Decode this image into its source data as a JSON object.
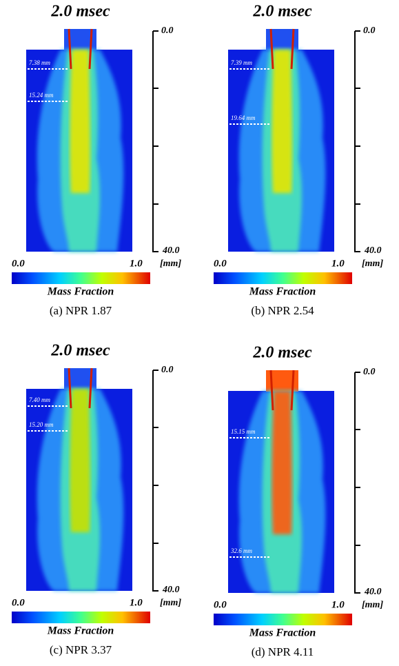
{
  "panels": [
    {
      "time": "2.0 msec",
      "scale_top": "0.0",
      "scale_bottom": "40.0",
      "scale_unit": "[mm]",
      "bar_min": "0.0",
      "bar_max": "1.0",
      "bar_title": "Mass Fraction",
      "caption": "(a) NPR 1.87",
      "annotations": [
        "7.38 mm",
        "15.24 mm"
      ],
      "core_color": "#e6e600"
    },
    {
      "time": "2.0 msec",
      "scale_top": "0.0",
      "scale_bottom": "40.0",
      "scale_unit": "[mm]",
      "bar_min": "0.0",
      "bar_max": "1.0",
      "bar_title": "Mass Fraction",
      "caption": "(b) NPR 2.54",
      "annotations": [
        "7.39 mm",
        "19.64 mm"
      ],
      "core_color": "#e6e600"
    },
    {
      "time": "2.0 msec",
      "scale_top": "0.0",
      "scale_bottom": "40.0",
      "scale_unit": "[mm]",
      "bar_min": "0.0",
      "bar_max": "1.0",
      "bar_title": "Mass Fraction",
      "caption": "(c) NPR 3.37",
      "annotations": [
        "7.40 mm",
        "15.20 mm"
      ],
      "core_color": "#c8e000"
    },
    {
      "time": "2.0 msec",
      "scale_top": "0.0",
      "scale_bottom": "40.0",
      "scale_unit": "[mm]",
      "bar_min": "0.0",
      "bar_max": "1.0",
      "bar_title": "Mass Fraction",
      "caption": "(d) NPR 4.11",
      "annotations": [
        "15.15 mm",
        "32.6 mm"
      ],
      "core_color": "#ff5a10"
    }
  ]
}
